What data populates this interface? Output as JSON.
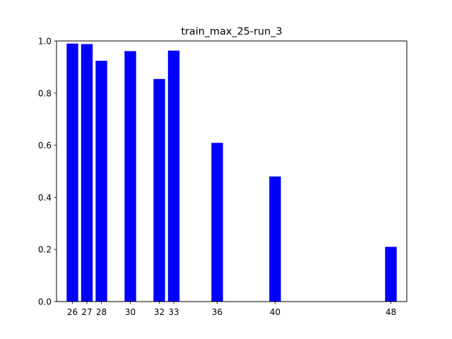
{
  "chart_data": {
    "type": "bar",
    "title": "train_max_25-run_3",
    "xlabel": "",
    "ylabel": "",
    "bar_color": "#0000ff",
    "xlim": [
      24.9,
      49.1
    ],
    "ylim": [
      0.0,
      1.0
    ],
    "x_ticks": [
      26,
      27,
      28,
      30,
      32,
      33,
      36,
      40,
      48
    ],
    "x_tick_labels": [
      "26",
      "27",
      "28",
      "30",
      "32",
      "33",
      "36",
      "40",
      "48"
    ],
    "y_ticks": [
      0.0,
      0.2,
      0.4,
      0.6,
      0.8,
      1.0
    ],
    "y_tick_labels": [
      "0.0",
      "0.2",
      "0.4",
      "0.6",
      "0.8",
      "1.0"
    ],
    "bar_width": 0.8,
    "x": [
      26,
      27,
      28,
      30,
      32,
      33,
      36,
      40,
      48
    ],
    "values": [
      0.99,
      0.988,
      0.924,
      0.961,
      0.854,
      0.963,
      0.609,
      0.48,
      0.21
    ]
  }
}
